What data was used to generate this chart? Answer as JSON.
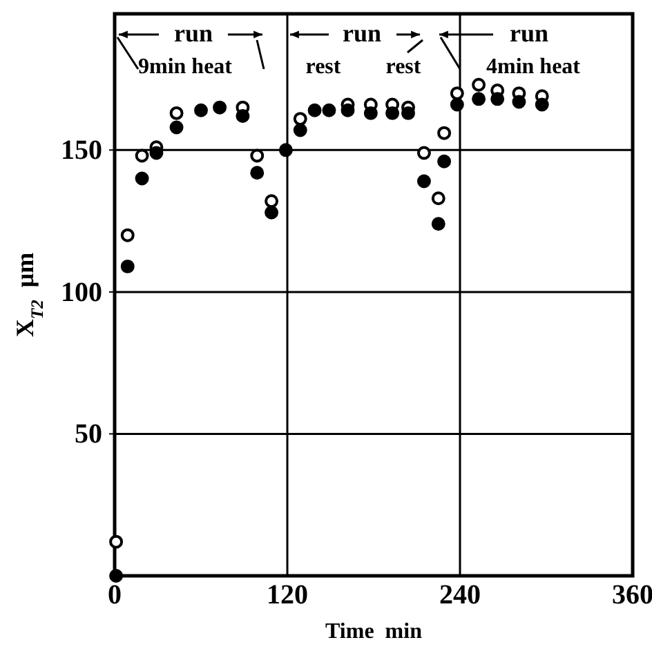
{
  "chart_data": {
    "type": "scatter",
    "xlabel": "Time  min",
    "ylabel": "X$_{T2}$  μm",
    "xlim": [
      0,
      360
    ],
    "ylim": [
      0,
      198
    ],
    "xticks": [
      0,
      120,
      240,
      360
    ],
    "yticks": [
      50,
      100,
      150
    ],
    "grid": true,
    "marker": "circle",
    "series": [
      {
        "color": "#ffffff",
        "x": [
          1,
          9,
          19,
          29,
          43,
          89,
          99,
          109,
          129,
          162,
          178,
          193,
          204,
          215,
          225,
          229,
          238,
          253,
          266,
          281,
          297
        ],
        "values": [
          12,
          120,
          148,
          151,
          163,
          165,
          148,
          132,
          161,
          166,
          166,
          166,
          165,
          149,
          133,
          156,
          170,
          173,
          171,
          170,
          169
        ]
      },
      {
        "color": "#000000",
        "x": [
          1,
          9,
          19,
          29,
          43,
          60,
          73,
          89,
          99,
          109,
          119,
          129,
          139,
          149,
          162,
          178,
          193,
          204,
          215,
          225,
          229,
          238,
          253,
          266,
          281,
          297
        ],
        "values": [
          0,
          109,
          140,
          149,
          158,
          164,
          165,
          162,
          142,
          128,
          150,
          157,
          164,
          164,
          164,
          163,
          163,
          163,
          139,
          124,
          146,
          166,
          168,
          168,
          167,
          166
        ]
      }
    ],
    "annotations": [
      "run",
      "9min heat",
      "rest",
      "run",
      "rest",
      "run",
      "4min heat"
    ]
  }
}
